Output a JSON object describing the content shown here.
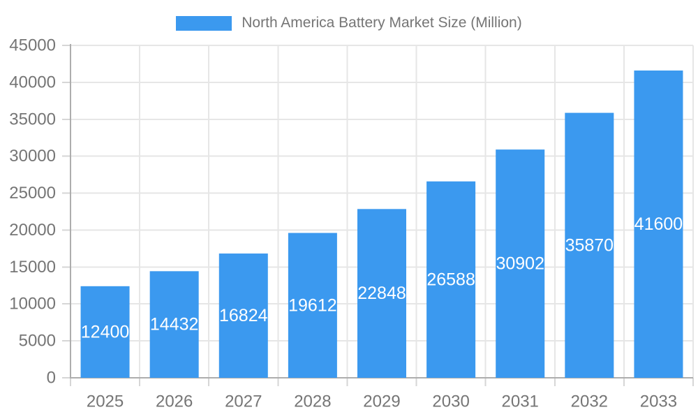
{
  "chart_data": {
    "type": "bar",
    "title": "North America Battery Market Size (Million)",
    "categories": [
      "2025",
      "2026",
      "2027",
      "2028",
      "2029",
      "2030",
      "2031",
      "2032",
      "2033"
    ],
    "series": [
      {
        "name": "North America Battery Market Size (Million)",
        "values": [
          12400,
          14432,
          16824,
          19612,
          22848,
          26588,
          30902,
          35870,
          41600
        ]
      }
    ],
    "xlabel": "",
    "ylabel": "",
    "ylim": [
      0,
      45000
    ],
    "yticks": [
      0,
      5000,
      10000,
      15000,
      20000,
      25000,
      30000,
      35000,
      40000,
      45000
    ],
    "grid": true,
    "legend_position": "top",
    "bar_labels": "white text centered inside bars",
    "colors": {
      "bar": "#3B99EF",
      "grid": "#E6E6E6",
      "axis": "#ADADAD",
      "tick": "#D6D6D6",
      "axis_text": "#757575",
      "bar_label_text": "#FFFFFF",
      "background": "#FFFFFF"
    }
  }
}
